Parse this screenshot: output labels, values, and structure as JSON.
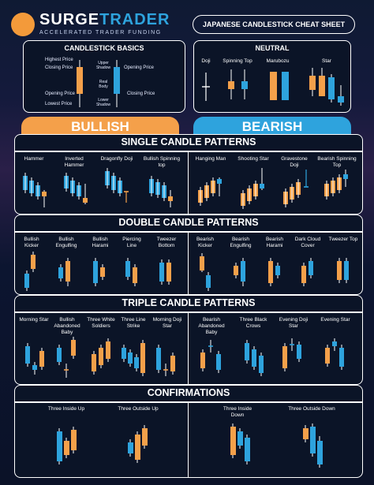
{
  "brand": {
    "name_part1": "SURGE",
    "name_part2": "TRADER",
    "tagline": "ACCELERATED TRADER FUNDING"
  },
  "sheet_title": "JAPANESE CANDLESTICK CHEAT SHEET",
  "basics": {
    "title": "CANDLESTICK BASICS",
    "left_labels": [
      "Highest Price",
      "Closing Price",
      "Opening Price",
      "Lowest Price"
    ],
    "middle_labels": [
      "Upper Shadow",
      "Real Body",
      "Lower Shadow"
    ],
    "right_labels": [
      "Opening Price",
      "Closing Price"
    ]
  },
  "neutral": {
    "title": "NEUTRAL",
    "patterns": [
      "Doji",
      "Spinning Top",
      "Marubozu",
      "Star"
    ]
  },
  "headers": {
    "bullish": "BULLISH",
    "bearish": "BEARISH"
  },
  "sections": {
    "single": {
      "title": "SINGLE CANDLE PATTERNS",
      "bullish": [
        "Hammer",
        "Inverted Hammer",
        "Dragonfly Doji",
        "Bullish Spinning top"
      ],
      "bearish": [
        "Hanging Man",
        "Shooting Star",
        "Gravestone Doji",
        "Bearish Spinning Top"
      ]
    },
    "double": {
      "title": "DOUBLE CANDLE PATTERNS",
      "bullish": [
        "Bullish Kicker",
        "Bullish Engulfing",
        "Bullish Harami",
        "Piercing Line",
        "Tweezer Bottom"
      ],
      "bearish": [
        "Bearish Kicker",
        "Bearish Engulfing",
        "Bearish Harami",
        "Dark Cloud Cover",
        "Tweezer Top"
      ]
    },
    "triple": {
      "title": "TRIPLE CANDLE PATTERNS",
      "bullish": [
        "Morning Star",
        "Bullish Abandoned Baby",
        "Three White Soldiers",
        "Three Line Strike",
        "Morning Doji Star"
      ],
      "bearish": [
        "Bearish Abandoned Baby",
        "Three Black Crows",
        "Evening Doji Star",
        "Evening Star"
      ]
    },
    "confirm": {
      "title": "CONFIRMATIONS",
      "bullish": [
        "Three Inside Up",
        "Three Outside Up"
      ],
      "bearish": [
        "Three Inside Down",
        "Three Outside Down"
      ]
    }
  },
  "colors": {
    "bull": "#f4a04a",
    "bear": "#2ea3dd",
    "frame": "#ffffff",
    "panel": "#0b1427"
  }
}
